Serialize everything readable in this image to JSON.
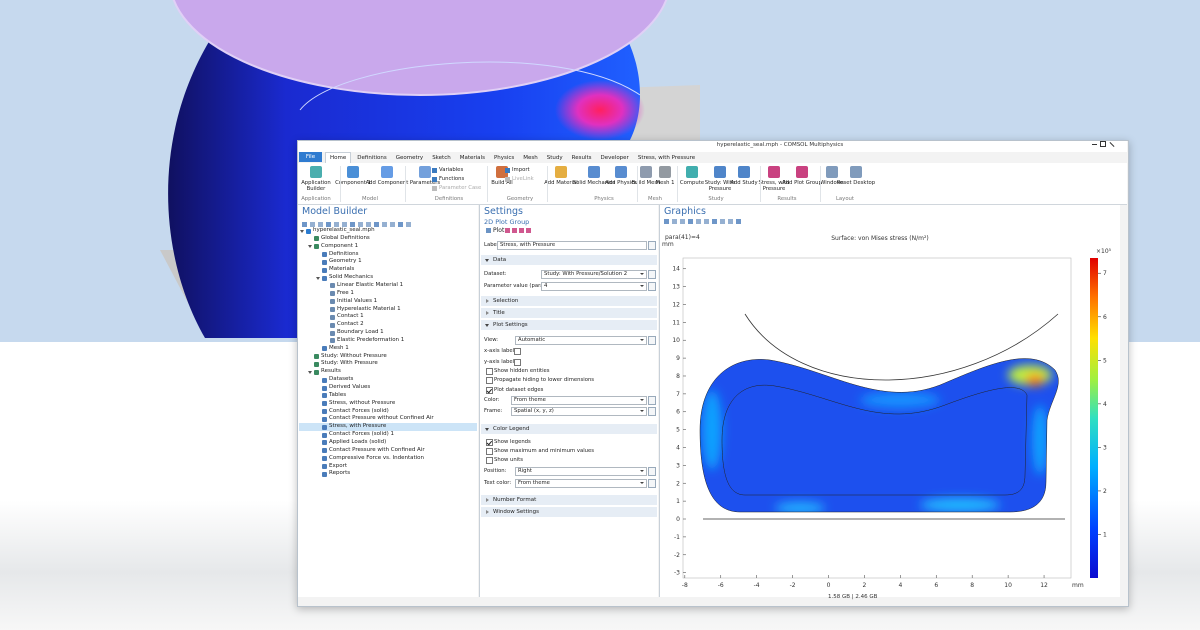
{
  "window": {
    "title": "hyperelastic_seal.mph - COMSOL Multiphysics",
    "tabs": [
      "File",
      "Home",
      "Definitions",
      "Geometry",
      "Sketch",
      "Materials",
      "Physics",
      "Mesh",
      "Study",
      "Results",
      "Developer",
      "Stress, with Pressure"
    ],
    "ribbon_items": [
      "Application Builder",
      "Component 1",
      "Add Component",
      "Parameters",
      "Variables",
      "Functions",
      "Parameter Case",
      "Build All",
      "Import",
      "LiveLink",
      "Add Material",
      "Solid Mechanics",
      "Add Physics",
      "Build Mesh",
      "Mesh 1",
      "Compute",
      "Study: With Pressure",
      "Add Study",
      "Stress, with Pressure",
      "Add Plot Group",
      "Windows",
      "Reset Desktop"
    ],
    "ribbon_groups": [
      "Application",
      "Model",
      "Definitions",
      "Geometry",
      "Physics",
      "Mesh",
      "Study",
      "Results",
      "Layout"
    ],
    "status": "1.58 GB | 2.46 GB"
  },
  "model_builder": {
    "title": "Model Builder",
    "tree": [
      {
        "label": "hyperelastic_seal.mph",
        "children": [
          {
            "label": "Global Definitions"
          },
          {
            "label": "Component 1",
            "children": [
              {
                "label": "Definitions"
              },
              {
                "label": "Geometry 1"
              },
              {
                "label": "Materials"
              },
              {
                "label": "Solid Mechanics",
                "children": [
                  {
                    "label": "Linear Elastic Material 1"
                  },
                  {
                    "label": "Free 1"
                  },
                  {
                    "label": "Initial Values 1"
                  },
                  {
                    "label": "Hyperelastic Material 1"
                  },
                  {
                    "label": "Contact 1"
                  },
                  {
                    "label": "Contact 2"
                  },
                  {
                    "label": "Boundary Load 1"
                  },
                  {
                    "label": "Elastic Predeformation 1"
                  }
                ]
              },
              {
                "label": "Mesh 1"
              }
            ]
          },
          {
            "label": "Study: Without Pressure"
          },
          {
            "label": "Study: With Pressure"
          },
          {
            "label": "Results",
            "children": [
              {
                "label": "Datasets"
              },
              {
                "label": "Derived Values"
              },
              {
                "label": "Tables"
              },
              {
                "label": "Stress, without Pressure"
              },
              {
                "label": "Contact Forces (solid)"
              },
              {
                "label": "Contact Pressure without Confined Air"
              },
              {
                "label": "Stress, with Pressure",
                "selected": true
              },
              {
                "label": "Contact Forces (solid) 1"
              },
              {
                "label": "Applied Loads (solid)"
              },
              {
                "label": "Contact Pressure with Confined Air"
              },
              {
                "label": "Compressive Force vs. Indentation"
              },
              {
                "label": "Export"
              },
              {
                "label": "Reports"
              }
            ]
          }
        ]
      }
    ]
  },
  "settings": {
    "title": "Settings",
    "subtitle": "2D Plot Group",
    "toolbar": "Plot",
    "rows": [
      {
        "label": "Label:",
        "value": "Stress, with Pressure"
      },
      {
        "section": "Data",
        "open": true
      },
      {
        "label": "Dataset:",
        "value": "Study: With Pressure/Solution 2"
      },
      {
        "label": "Parameter value (para):",
        "value": "4"
      },
      {
        "section": "Selection",
        "open": false
      },
      {
        "section": "Title",
        "open": false
      },
      {
        "section": "Plot Settings",
        "open": true
      },
      {
        "label": "View:",
        "value": "Automatic"
      },
      {
        "label": "x-axis label:",
        "checked": false
      },
      {
        "label": "y-axis label:",
        "checked": false
      },
      {
        "check": "Show hidden entities",
        "checked": false
      },
      {
        "check": "Propagate hiding to lower dimensions",
        "checked": false
      },
      {
        "check": "Plot dataset edges",
        "checked": true
      },
      {
        "label": "Color:",
        "value": "From theme"
      },
      {
        "label": "Frame:",
        "value": "Spatial  (x, y, z)"
      },
      {
        "section": "Color Legend",
        "open": true
      },
      {
        "check": "Show legends",
        "checked": true
      },
      {
        "check": "Show maximum and minimum values",
        "checked": false
      },
      {
        "check": "Show units",
        "checked": false
      },
      {
        "label": "Position:",
        "value": "Right"
      },
      {
        "label": "Text color:",
        "value": "From theme"
      },
      {
        "section": "Number Format",
        "open": false
      },
      {
        "section": "Window Settings",
        "open": false
      }
    ]
  },
  "graphics": {
    "title": "Graphics",
    "param": "para(41)=4",
    "plot_title": "Surface: von Mises stress (N/m²)",
    "x_unit": "mm",
    "y_unit": "mm",
    "xlim": [
      -8.1,
      13.5
    ],
    "ylim": [
      -3.3,
      14.6
    ],
    "xticks": [
      -8,
      -6,
      -4,
      -2,
      0,
      2,
      4,
      6,
      8,
      10,
      12
    ],
    "yticks": [
      -3,
      -2,
      -1,
      0,
      1,
      2,
      3,
      4,
      5,
      6,
      7,
      8,
      9,
      10,
      11,
      12,
      13,
      14
    ],
    "colorbar": {
      "clim": [
        0,
        7.35
      ],
      "ticks": [
        1,
        2,
        3,
        4,
        5,
        6,
        7
      ],
      "multiplier": "×10⁵"
    }
  }
}
